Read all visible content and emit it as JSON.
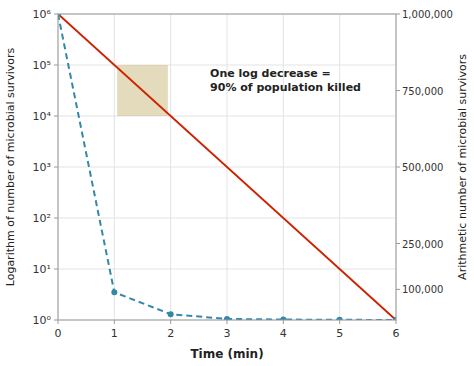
{
  "chart_data": {
    "type": "line",
    "xlabel": "Time (min)",
    "ylabel": "Logarithm of number of microbial survivors",
    "y2label": "Arithmetic number of microbial survivors",
    "log": "y",
    "grid": true,
    "xlim": [
      0,
      6
    ],
    "xticks": [
      0,
      1,
      2,
      3,
      4,
      5,
      6
    ],
    "ylim": [
      1,
      1000000
    ],
    "yticks": [
      {
        "value": 1,
        "label": "10⁰"
      },
      {
        "value": 10,
        "label": "10¹"
      },
      {
        "value": 100,
        "label": "10²"
      },
      {
        "value": 1000,
        "label": "10³"
      },
      {
        "value": 10000,
        "label": "10⁴"
      },
      {
        "value": 100000,
        "label": "10⁵"
      },
      {
        "value": 1000000,
        "label": "10⁶"
      }
    ],
    "y2lim": [
      0,
      1000000
    ],
    "y2ticks": [
      {
        "value": 100000,
        "label": "100,000"
      },
      {
        "value": 250000,
        "label": "250,000"
      },
      {
        "value": 500000,
        "label": "500,000"
      },
      {
        "value": 750000,
        "label": "750,000"
      },
      {
        "value": 1000000,
        "label": "1,000,000"
      }
    ],
    "series": [
      {
        "color": "#cc2200",
        "line_style": "solid",
        "marker": "none",
        "x": [
          0,
          6
        ],
        "values": [
          1000000,
          1
        ]
      },
      {
        "color": "#3388aa",
        "line_style": "dashed",
        "marker": "circle",
        "x": [
          0,
          1,
          2,
          3,
          4,
          5,
          6
        ],
        "values": [
          1000000,
          3.5,
          1.3,
          1.05,
          1.02,
          1.01,
          1.0
        ]
      }
    ],
    "bands": [
      {
        "x": [
          1.05,
          1.95
        ],
        "y": [
          10000,
          100000
        ],
        "color": "#c8b878"
      }
    ],
    "annotations": [
      {
        "text": "One log decrease =\n90% of population killed",
        "x": 2.7,
        "y": 50000
      }
    ]
  }
}
